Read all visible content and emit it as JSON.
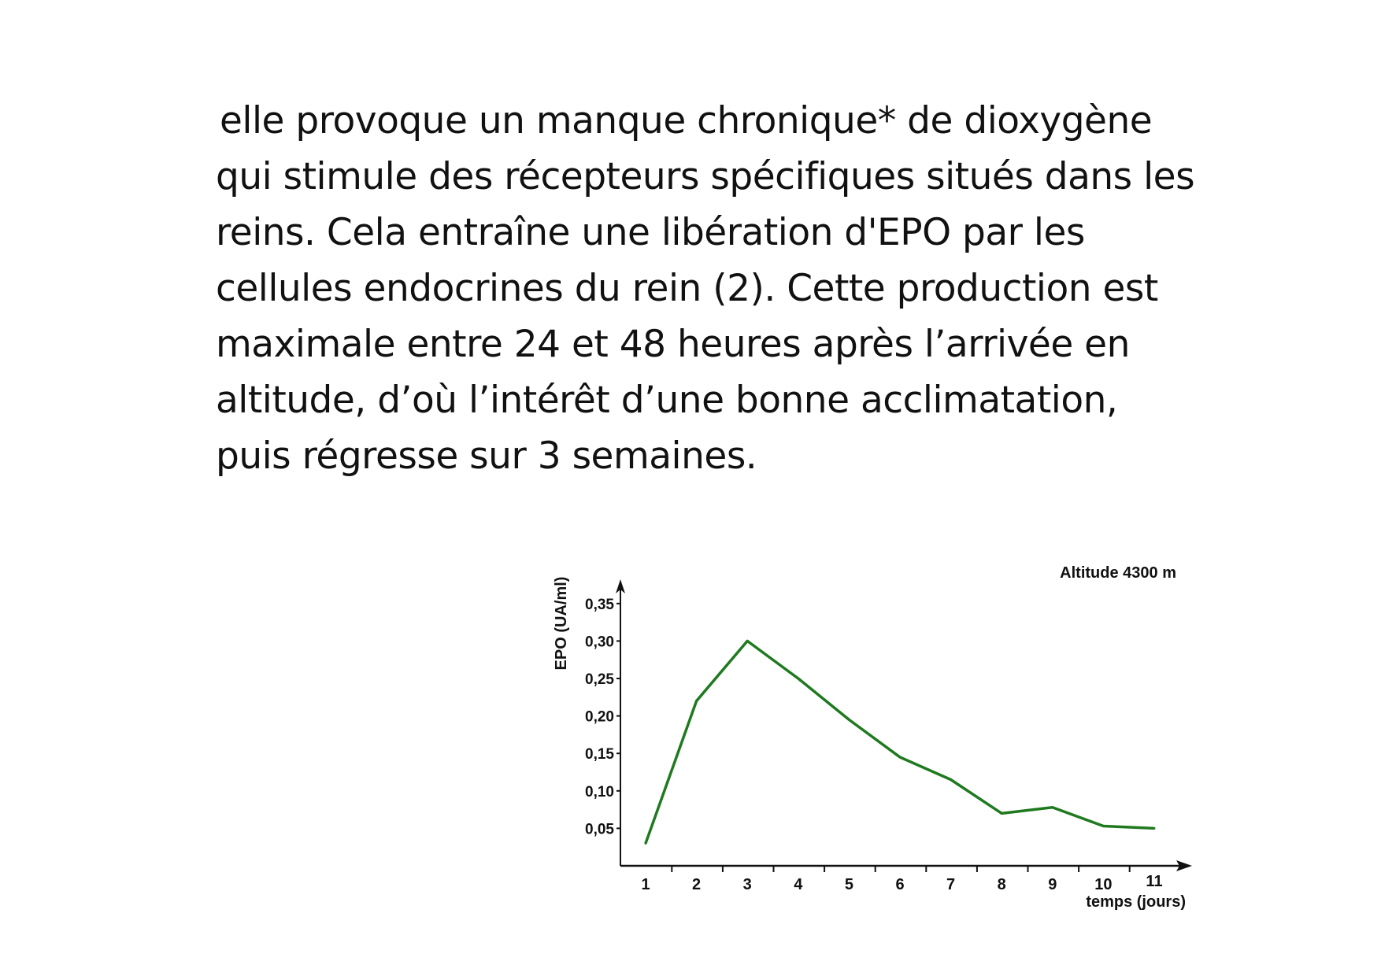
{
  "paragraph": [
    "elle provoque un manque chronique* de dioxygène",
    "qui stimule des récepteurs spécifiques situés dans les",
    "reins. Cela entraîne une libération d'EPO par les",
    "cellules endocrines du rein (2). Cette production est",
    "maximale entre 24 et 48 heures après l’arrivée en",
    "altitude, d’où l’intérêt d’une bonne acclimatation,",
    "puis régresse sur 3 semaines."
  ],
  "chart_data": {
    "type": "line",
    "title": "Altitude 4300 m",
    "xlabel": "temps (jours)",
    "ylabel": "EPO (UA/ml)",
    "x": [
      1,
      2,
      3,
      4,
      5,
      6,
      7,
      8,
      9,
      10,
      11
    ],
    "values": [
      0.03,
      0.22,
      0.3,
      0.25,
      0.195,
      0.145,
      0.115,
      0.07,
      0.078,
      0.053,
      0.05
    ],
    "yticks": [
      "0,05",
      "0,10",
      "0,15",
      "0,20",
      "0,25",
      "0,30",
      "0,35"
    ],
    "xticks": [
      "1",
      "2",
      "3",
      "4",
      "5",
      "6",
      "7",
      "8",
      "9",
      "10",
      "11"
    ],
    "ylim": [
      0,
      0.38
    ],
    "line_color": "#1f7a1f",
    "grid": false
  }
}
